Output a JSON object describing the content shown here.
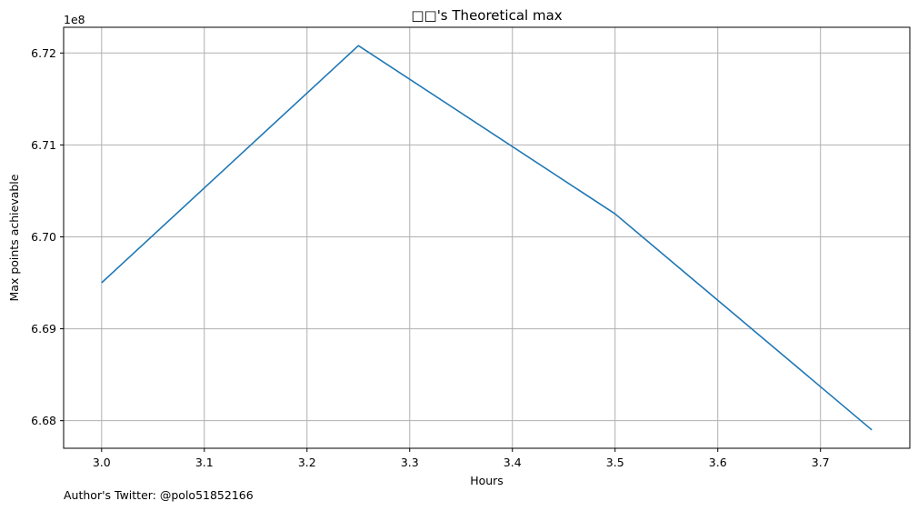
{
  "chart_data": {
    "type": "line",
    "title": "□□'s Theoretical max",
    "xlabel": "Hours",
    "ylabel": "Max points achievable",
    "y_offset_label": "1e8",
    "xlim": [
      2.963,
      3.787
    ],
    "ylim": [
      6.677,
      6.7228
    ],
    "grid": true,
    "x_ticks": [
      3.0,
      3.1,
      3.2,
      3.3,
      3.4,
      3.5,
      3.6,
      3.7
    ],
    "x_tick_labels": [
      "3.0",
      "3.1",
      "3.2",
      "3.3",
      "3.4",
      "3.5",
      "3.6",
      "3.7"
    ],
    "y_ticks": [
      6.68,
      6.69,
      6.7,
      6.71,
      6.72
    ],
    "y_tick_labels": [
      "6.68",
      "6.69",
      "6.70",
      "6.71",
      "6.72"
    ],
    "line_color": "#1f77b4",
    "grid_color": "#b0b0b0",
    "series": [
      {
        "x": [
          3.0,
          3.25,
          3.5,
          3.75
        ],
        "y": [
          6.695,
          6.7208,
          6.7025,
          6.679
        ]
      }
    ]
  },
  "footer": {
    "text": "Author's Twitter: @polo51852166"
  }
}
